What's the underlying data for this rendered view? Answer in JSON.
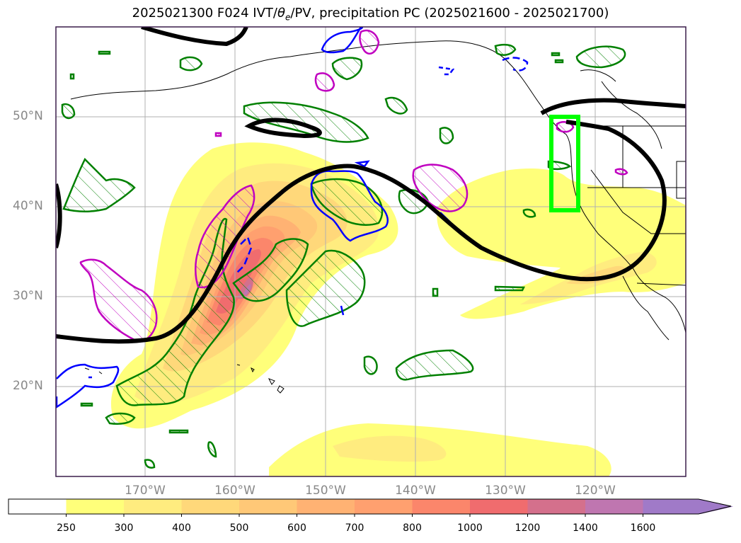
{
  "title_prefix": "2025021300 F024 IVT/",
  "title_theta": "θ",
  "title_theta_sub": "e",
  "title_suffix": "/PV, precipitation PC (2025021600 - 2025021700)",
  "lat_labels": [
    "50°N",
    "40°N",
    "30°N",
    "20°N"
  ],
  "lon_labels": [
    "170°W",
    "160°W",
    "150°W",
    "140°W",
    "130°W",
    "120°W"
  ],
  "colorbar": {
    "ticks": [
      "250",
      "300",
      "400",
      "500",
      "600",
      "700",
      "800",
      "1000",
      "1200",
      "1400",
      "1600"
    ],
    "colors": [
      "#ffffff",
      "#ffff7a",
      "#ffec7f",
      "#ffd87a",
      "#ffc877",
      "#ffb273",
      "#ffa06f",
      "#fb866b",
      "#f06c6e",
      "#d4708c",
      "#bf76b0",
      "#a07ac8"
    ]
  },
  "colors": {
    "ivt_pc": "#ff0000",
    "green_contours": "#008000",
    "magenta_contours": "#c000c0",
    "blue_contours": "#0000ff",
    "jet_contour": "#000000",
    "target_box": "#00ff00"
  }
}
